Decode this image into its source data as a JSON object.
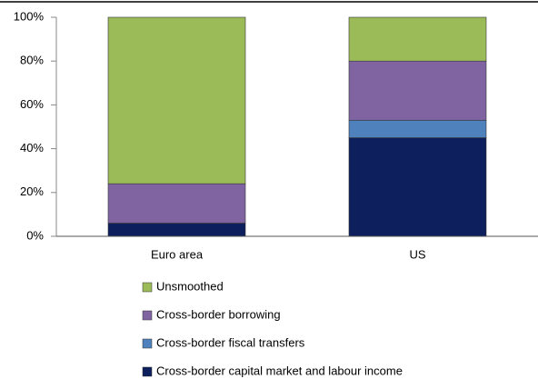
{
  "chart_data": {
    "type": "stacked_bar",
    "categories": [
      "Euro area",
      "US"
    ],
    "series": [
      {
        "name": "Cross-border capital market and labour income",
        "color": "#0d1f5c",
        "values": [
          6,
          45
        ]
      },
      {
        "name": "Cross-border fiscal transfers",
        "color": "#4f81bd",
        "values": [
          0,
          8
        ]
      },
      {
        "name": "Cross-border borrowing",
        "color": "#8064a2",
        "values": [
          18,
          27
        ]
      },
      {
        "name": "Unsmoothed",
        "color": "#9bbb59",
        "values": [
          76,
          20
        ]
      }
    ],
    "ylim": [
      0,
      100
    ],
    "yticks": [
      {
        "value": 0,
        "label": "0%"
      },
      {
        "value": 20,
        "label": "20%"
      },
      {
        "value": 40,
        "label": "40%"
      },
      {
        "value": 60,
        "label": "60%"
      },
      {
        "value": 80,
        "label": "80%"
      },
      {
        "value": 100,
        "label": "100%"
      }
    ],
    "grid": false
  }
}
